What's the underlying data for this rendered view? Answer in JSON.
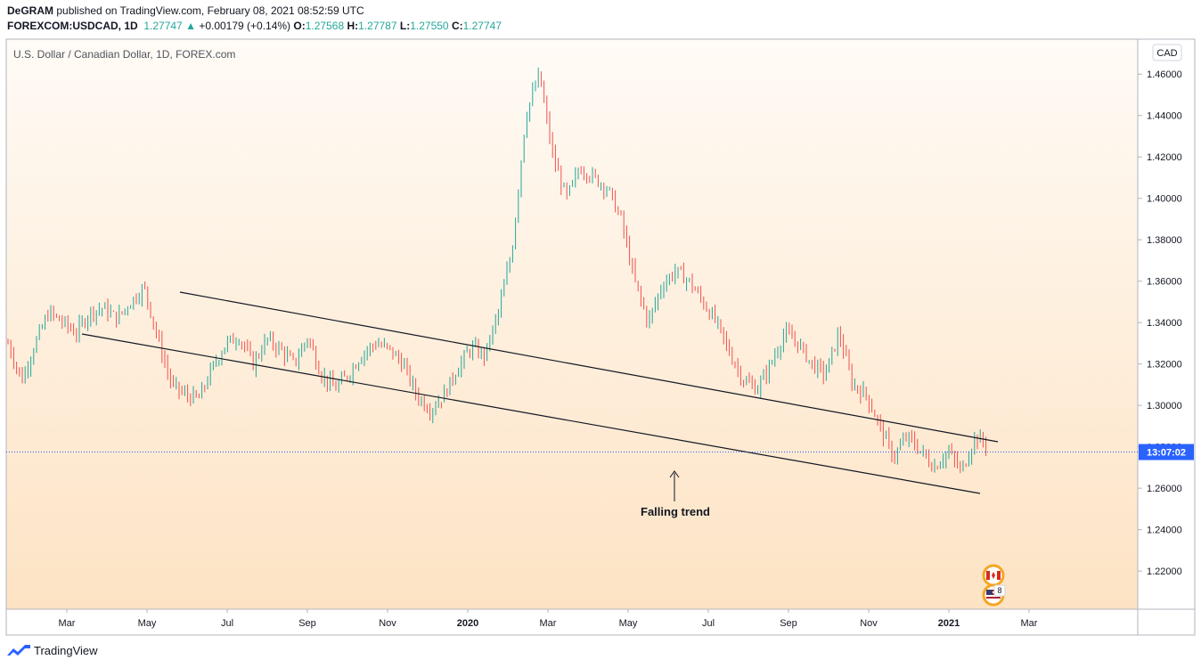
{
  "header": {
    "author": "DeGRAM",
    "published": "published on TradingView.com, February 08, 2021 08:52:59 UTC",
    "symbol": "FOREXCOM:USDCAD, 1D",
    "last": "1.27747",
    "change": "+0.00179 (+0.14%)",
    "o_label": "O:",
    "o": "1.27568",
    "h_label": "H:",
    "h": "1.27787",
    "l_label": "L:",
    "l": "1.27550",
    "c_label": "C:",
    "c": "1.27747"
  },
  "chart_data": {
    "type": "candlestick",
    "title": "U.S. Dollar / Canadian Dollar, 1D, FOREX.com",
    "currency": "CAD",
    "ylim": [
      1.205,
      1.47
    ],
    "y_ticks": [
      "1.46000",
      "1.44000",
      "1.42000",
      "1.40000",
      "1.38000",
      "1.36000",
      "1.34000",
      "1.32000",
      "1.30000",
      "1.28000",
      "1.26000",
      "1.24000",
      "1.22000"
    ],
    "x_ticks": [
      "Mar",
      "May",
      "Jul",
      "Sep",
      "Nov",
      "2020",
      "Mar",
      "May",
      "Jul",
      "Sep",
      "Nov",
      "2021",
      "Mar"
    ],
    "x_tick_bold": [
      "2020",
      "2021"
    ],
    "time_label": "13:07:02",
    "current_price": 1.27747,
    "up_color": "#26a69a",
    "down_color": "#ef5350",
    "price_path": [
      [
        1.33,
        1.336
      ],
      [
        1.312,
        1.308
      ],
      [
        1.33,
        1.322
      ],
      [
        1.345,
        1.33
      ],
      [
        1.34,
        1.335
      ],
      [
        1.335,
        1.328
      ],
      [
        1.345,
        1.34
      ],
      [
        1.347,
        1.345
      ],
      [
        1.342,
        1.338
      ],
      [
        1.35,
        1.335
      ],
      [
        1.357,
        1.345
      ],
      [
        1.332,
        1.34
      ],
      [
        1.31,
        1.315
      ],
      [
        1.305,
        1.303
      ],
      [
        1.303,
        1.31
      ],
      [
        1.318,
        1.315
      ],
      [
        1.33,
        1.322
      ],
      [
        1.333,
        1.325
      ],
      [
        1.32,
        1.325
      ],
      [
        1.332,
        1.318
      ],
      [
        1.327,
        1.33
      ],
      [
        1.32,
        1.318
      ],
      [
        1.333,
        1.325
      ],
      [
        1.315,
        1.32
      ],
      [
        1.308,
        1.305
      ],
      [
        1.315,
        1.313
      ],
      [
        1.325,
        1.318
      ],
      [
        1.33,
        1.322
      ],
      [
        1.327,
        1.322
      ],
      [
        1.32,
        1.322
      ],
      [
        1.305,
        1.312
      ],
      [
        1.298,
        1.297
      ],
      [
        1.305,
        1.302
      ],
      [
        1.318,
        1.313
      ],
      [
        1.328,
        1.322
      ],
      [
        1.324,
        1.323
      ],
      [
        1.345,
        1.328
      ],
      [
        1.375,
        1.35
      ],
      [
        1.44,
        1.4
      ],
      [
        1.46,
        1.425
      ],
      [
        1.42,
        1.41
      ],
      [
        1.4,
        1.39
      ],
      [
        1.415,
        1.405
      ],
      [
        1.41,
        1.395
      ],
      [
        1.405,
        1.39
      ],
      [
        1.39,
        1.375
      ],
      [
        1.36,
        1.35
      ],
      [
        1.34,
        1.355
      ],
      [
        1.358,
        1.365
      ],
      [
        1.365,
        1.357
      ],
      [
        1.36,
        1.355
      ],
      [
        1.35,
        1.34
      ],
      [
        1.34,
        1.33
      ],
      [
        1.325,
        1.32
      ],
      [
        1.312,
        1.305
      ],
      [
        1.308,
        1.312
      ],
      [
        1.32,
        1.318
      ],
      [
        1.335,
        1.34
      ],
      [
        1.33,
        1.325
      ],
      [
        1.32,
        1.315
      ],
      [
        1.315,
        1.325
      ],
      [
        1.335,
        1.32
      ],
      [
        1.31,
        1.312
      ],
      [
        1.305,
        1.302
      ],
      [
        1.29,
        1.28
      ],
      [
        1.275,
        1.278
      ],
      [
        1.285,
        1.292
      ],
      [
        1.278,
        1.282
      ],
      [
        1.27,
        1.268
      ],
      [
        1.278,
        1.283
      ],
      [
        1.268,
        1.278
      ],
      [
        1.285,
        1.282
      ],
      [
        1.28,
        1.278
      ]
    ],
    "annotation": "Falling trend"
  },
  "footer": {
    "brand": "TradingView"
  }
}
